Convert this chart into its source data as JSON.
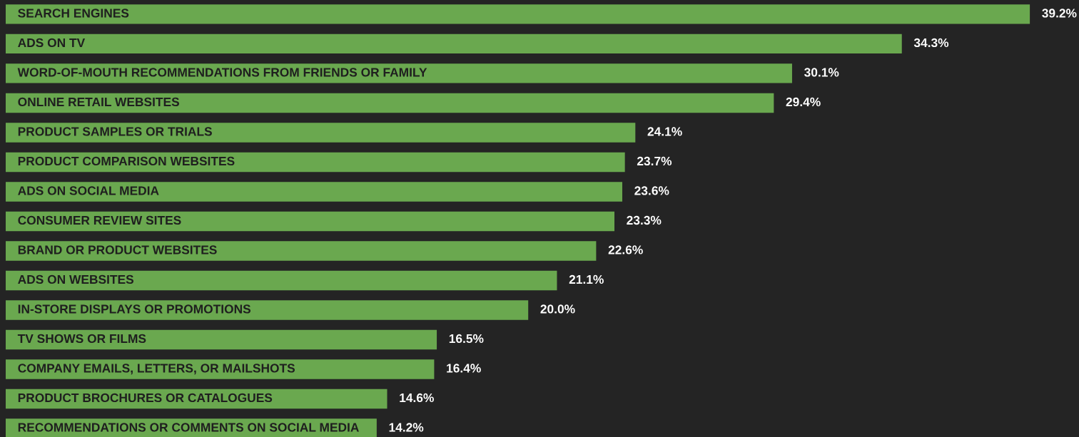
{
  "chart_data": {
    "type": "bar",
    "orientation": "horizontal",
    "categories": [
      "SEARCH ENGINES",
      "ADS ON TV",
      "WORD-OF-MOUTH RECOMMENDATIONS FROM FRIENDS OR FAMILY",
      "ONLINE RETAIL WEBSITES",
      "PRODUCT SAMPLES OR TRIALS",
      "PRODUCT COMPARISON WEBSITES",
      "ADS ON SOCIAL MEDIA",
      "CONSUMER REVIEW SITES",
      "BRAND OR PRODUCT WEBSITES",
      "ADS ON WEBSITES",
      "IN-STORE DISPLAYS OR PROMOTIONS",
      "TV SHOWS OR FILMS",
      "COMPANY EMAILS, LETTERS, OR MAILSHOTS",
      "PRODUCT BROCHURES OR CATALOGUES",
      "RECOMMENDATIONS OR COMMENTS ON SOCIAL MEDIA"
    ],
    "values": [
      39.2,
      34.3,
      30.1,
      29.4,
      24.1,
      23.7,
      23.6,
      23.3,
      22.6,
      21.1,
      20.0,
      16.5,
      16.4,
      14.6,
      14.2
    ],
    "value_labels": [
      "39.2%",
      "34.3%",
      "30.1%",
      "29.4%",
      "24.1%",
      "23.7%",
      "23.6%",
      "23.3%",
      "22.6%",
      "21.1%",
      "20.0%",
      "16.5%",
      "16.4%",
      "14.6%",
      "14.2%"
    ],
    "color": "#6aa84f"
  }
}
